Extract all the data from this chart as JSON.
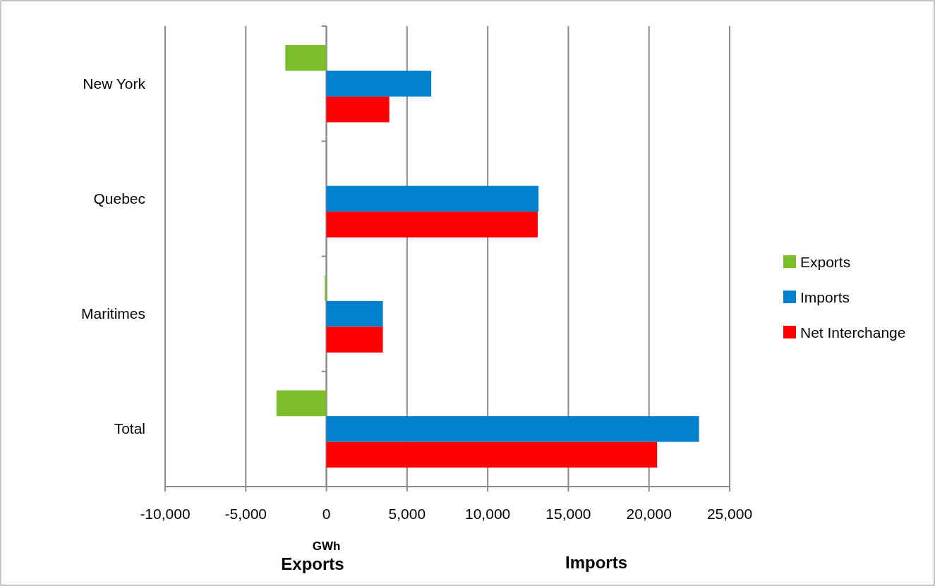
{
  "chart_data": {
    "type": "bar",
    "orientation": "horizontal",
    "categories": [
      "New York",
      "Quebec",
      "Maritimes",
      "Total"
    ],
    "series": [
      {
        "name": "Exports",
        "color": "#7cbd2c",
        "values": [
          -2550,
          null,
          -100,
          -3100
        ]
      },
      {
        "name": "Imports",
        "color": "#0081cd",
        "values": [
          6500,
          13150,
          3500,
          23100
        ]
      },
      {
        "name": "Net Interchange",
        "color": "#ff0000",
        "values": [
          3900,
          13100,
          3500,
          20500
        ]
      }
    ],
    "xlim": [
      -10000,
      25000
    ],
    "xticks": [
      {
        "value": -10000,
        "label": "-10,000"
      },
      {
        "value": -5000,
        "label": "-5,000"
      },
      0,
      {
        "value": 5000,
        "label": "5,000"
      },
      {
        "value": 10000,
        "label": "10,000"
      },
      {
        "value": 15000,
        "label": "15,000"
      },
      {
        "value": 20000,
        "label": "20,000"
      },
      {
        "value": 25000,
        "label": "25,000"
      }
    ],
    "xlabel": "GWh",
    "grid": "x",
    "legend": "right",
    "annotations": [
      "Exports",
      "Imports"
    ]
  }
}
